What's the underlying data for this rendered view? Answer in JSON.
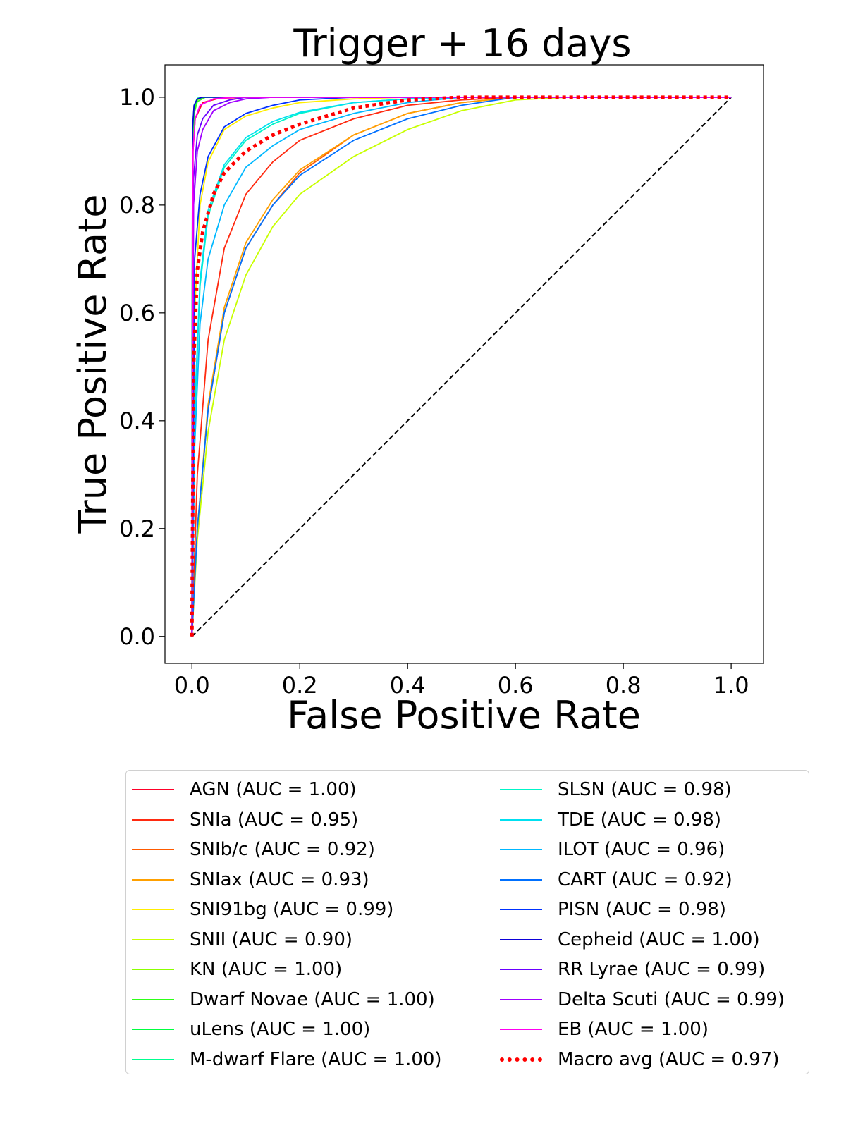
{
  "chart_data": {
    "type": "line",
    "title": "Trigger + 16 days",
    "xlabel": "False Positive Rate",
    "ylabel": "True Positive Rate",
    "xlim": [
      -0.05,
      1.06
    ],
    "ylim": [
      -0.05,
      1.06
    ],
    "xticks": [
      "0.0",
      "0.2",
      "0.4",
      "0.6",
      "0.8",
      "1.0"
    ],
    "yticks": [
      "0.0",
      "0.2",
      "0.4",
      "0.6",
      "0.8",
      "1.0"
    ],
    "grid": false,
    "legend_placement": "below",
    "chance_line": {
      "x": [
        0,
        1
      ],
      "y": [
        0,
        1
      ],
      "color": "#000000",
      "style": "dashed"
    },
    "series": [
      {
        "name": "AGN (AUC = 1.00)",
        "color": "#ff0029",
        "points": [
          [
            0,
            0
          ],
          [
            0.002,
            0.9
          ],
          [
            0.006,
            0.96
          ],
          [
            0.02,
            0.99
          ],
          [
            0.05,
            0.998
          ],
          [
            0.1,
            1
          ],
          [
            1,
            1
          ]
        ]
      },
      {
        "name": "SNIa (AUC = 0.95)",
        "color": "#ff2a10",
        "points": [
          [
            0,
            0
          ],
          [
            0.01,
            0.3
          ],
          [
            0.03,
            0.55
          ],
          [
            0.06,
            0.72
          ],
          [
            0.1,
            0.82
          ],
          [
            0.15,
            0.88
          ],
          [
            0.2,
            0.92
          ],
          [
            0.3,
            0.96
          ],
          [
            0.4,
            0.985
          ],
          [
            0.5,
            0.995
          ],
          [
            0.6,
            1
          ],
          [
            1,
            1
          ]
        ]
      },
      {
        "name": "SNIb/c (AUC = 0.92)",
        "color": "#ff5a00",
        "points": [
          [
            0,
            0
          ],
          [
            0.01,
            0.2
          ],
          [
            0.03,
            0.42
          ],
          [
            0.06,
            0.6
          ],
          [
            0.1,
            0.72
          ],
          [
            0.15,
            0.8
          ],
          [
            0.2,
            0.86
          ],
          [
            0.3,
            0.93
          ],
          [
            0.4,
            0.97
          ],
          [
            0.5,
            0.99
          ],
          [
            0.6,
            1
          ],
          [
            1,
            1
          ]
        ]
      },
      {
        "name": "SNIax (AUC = 0.93)",
        "color": "#ffa000",
        "points": [
          [
            0,
            0
          ],
          [
            0.01,
            0.2
          ],
          [
            0.03,
            0.43
          ],
          [
            0.06,
            0.61
          ],
          [
            0.1,
            0.73
          ],
          [
            0.15,
            0.81
          ],
          [
            0.2,
            0.865
          ],
          [
            0.3,
            0.93
          ],
          [
            0.4,
            0.97
          ],
          [
            0.5,
            0.99
          ],
          [
            0.6,
            1
          ],
          [
            1,
            1
          ]
        ]
      },
      {
        "name": "SNI91bg (AUC = 0.99)",
        "color": "#ffee00",
        "points": [
          [
            0,
            0
          ],
          [
            0.005,
            0.6
          ],
          [
            0.015,
            0.8
          ],
          [
            0.03,
            0.88
          ],
          [
            0.06,
            0.94
          ],
          [
            0.1,
            0.965
          ],
          [
            0.15,
            0.98
          ],
          [
            0.2,
            0.99
          ],
          [
            0.3,
            0.997
          ],
          [
            0.4,
            1
          ],
          [
            1,
            1
          ]
        ]
      },
      {
        "name": "SNII (AUC = 0.90)",
        "color": "#c8ff00",
        "points": [
          [
            0,
            0
          ],
          [
            0.01,
            0.18
          ],
          [
            0.03,
            0.38
          ],
          [
            0.06,
            0.55
          ],
          [
            0.1,
            0.67
          ],
          [
            0.15,
            0.76
          ],
          [
            0.2,
            0.82
          ],
          [
            0.3,
            0.89
          ],
          [
            0.4,
            0.94
          ],
          [
            0.5,
            0.975
          ],
          [
            0.6,
            0.995
          ],
          [
            0.7,
            1
          ],
          [
            1,
            1
          ]
        ]
      },
      {
        "name": "KN (AUC = 1.00)",
        "color": "#8cff00",
        "points": [
          [
            0,
            0
          ],
          [
            0.001,
            0.92
          ],
          [
            0.004,
            0.975
          ],
          [
            0.01,
            0.995
          ],
          [
            0.02,
            1
          ],
          [
            1,
            1
          ]
        ]
      },
      {
        "name": "Dwarf Novae (AUC = 1.00)",
        "color": "#2eff18",
        "points": [
          [
            0,
            0
          ],
          [
            0.001,
            0.9
          ],
          [
            0.004,
            0.97
          ],
          [
            0.01,
            0.992
          ],
          [
            0.025,
            1
          ],
          [
            1,
            1
          ]
        ]
      },
      {
        "name": "uLens (AUC = 1.00)",
        "color": "#00ff40",
        "points": [
          [
            0,
            0
          ],
          [
            0.001,
            0.93
          ],
          [
            0.004,
            0.98
          ],
          [
            0.01,
            0.996
          ],
          [
            0.02,
            1
          ],
          [
            1,
            1
          ]
        ]
      },
      {
        "name": "M-dwarf Flare (AUC = 1.00)",
        "color": "#00ff90",
        "points": [
          [
            0,
            0
          ],
          [
            0.001,
            0.94
          ],
          [
            0.004,
            0.985
          ],
          [
            0.01,
            0.998
          ],
          [
            0.02,
            1
          ],
          [
            1,
            1
          ]
        ]
      },
      {
        "name": "SLSN (AUC = 0.98)",
        "color": "#00f5c8",
        "points": [
          [
            0,
            0
          ],
          [
            0.005,
            0.4
          ],
          [
            0.015,
            0.65
          ],
          [
            0.03,
            0.78
          ],
          [
            0.06,
            0.87
          ],
          [
            0.1,
            0.92
          ],
          [
            0.15,
            0.95
          ],
          [
            0.2,
            0.97
          ],
          [
            0.3,
            0.99
          ],
          [
            0.4,
            0.997
          ],
          [
            0.5,
            1
          ],
          [
            1,
            1
          ]
        ]
      },
      {
        "name": "TDE (AUC = 0.98)",
        "color": "#00e0f0",
        "points": [
          [
            0,
            0
          ],
          [
            0.005,
            0.42
          ],
          [
            0.015,
            0.66
          ],
          [
            0.03,
            0.79
          ],
          [
            0.06,
            0.875
          ],
          [
            0.1,
            0.925
          ],
          [
            0.15,
            0.955
          ],
          [
            0.2,
            0.972
          ],
          [
            0.3,
            0.99
          ],
          [
            0.4,
            0.997
          ],
          [
            0.5,
            1
          ],
          [
            1,
            1
          ]
        ]
      },
      {
        "name": "ILOT (AUC = 0.96)",
        "color": "#00b8ff",
        "points": [
          [
            0,
            0
          ],
          [
            0.005,
            0.35
          ],
          [
            0.015,
            0.58
          ],
          [
            0.03,
            0.7
          ],
          [
            0.06,
            0.8
          ],
          [
            0.1,
            0.87
          ],
          [
            0.15,
            0.91
          ],
          [
            0.2,
            0.94
          ],
          [
            0.3,
            0.97
          ],
          [
            0.4,
            0.99
          ],
          [
            0.5,
            1
          ],
          [
            1,
            1
          ]
        ]
      },
      {
        "name": "CART (AUC = 0.92)",
        "color": "#0070ff",
        "points": [
          [
            0,
            0
          ],
          [
            0.01,
            0.2
          ],
          [
            0.03,
            0.42
          ],
          [
            0.06,
            0.6
          ],
          [
            0.1,
            0.72
          ],
          [
            0.15,
            0.8
          ],
          [
            0.2,
            0.855
          ],
          [
            0.3,
            0.92
          ],
          [
            0.4,
            0.96
          ],
          [
            0.5,
            0.985
          ],
          [
            0.6,
            1
          ],
          [
            1,
            1
          ]
        ]
      },
      {
        "name": "PISN (AUC = 0.98)",
        "color": "#0030ff",
        "points": [
          [
            0,
            0
          ],
          [
            0.005,
            0.7
          ],
          [
            0.015,
            0.82
          ],
          [
            0.03,
            0.89
          ],
          [
            0.06,
            0.945
          ],
          [
            0.1,
            0.97
          ],
          [
            0.15,
            0.985
          ],
          [
            0.2,
            0.995
          ],
          [
            0.3,
            1
          ],
          [
            1,
            1
          ]
        ]
      },
      {
        "name": "Cepheid (AUC = 1.00)",
        "color": "#0c00d8",
        "points": [
          [
            0,
            0
          ],
          [
            0.001,
            0.94
          ],
          [
            0.004,
            0.985
          ],
          [
            0.01,
            0.997
          ],
          [
            0.02,
            1
          ],
          [
            1,
            1
          ]
        ]
      },
      {
        "name": "RR Lyrae (AUC = 0.99)",
        "color": "#6a00ff",
        "points": [
          [
            0,
            0
          ],
          [
            0.003,
            0.85
          ],
          [
            0.01,
            0.93
          ],
          [
            0.02,
            0.96
          ],
          [
            0.04,
            0.985
          ],
          [
            0.07,
            0.995
          ],
          [
            0.1,
            1
          ],
          [
            1,
            1
          ]
        ]
      },
      {
        "name": "Delta Scuti (AUC = 0.99)",
        "color": "#a000ff",
        "points": [
          [
            0,
            0
          ],
          [
            0.003,
            0.8
          ],
          [
            0.01,
            0.9
          ],
          [
            0.02,
            0.94
          ],
          [
            0.04,
            0.975
          ],
          [
            0.07,
            0.99
          ],
          [
            0.1,
            0.997
          ],
          [
            0.15,
            1
          ],
          [
            1,
            1
          ]
        ]
      },
      {
        "name": "EB (AUC = 1.00)",
        "color": "#ff00f0",
        "points": [
          [
            0,
            0
          ],
          [
            0.002,
            0.9
          ],
          [
            0.006,
            0.96
          ],
          [
            0.015,
            0.985
          ],
          [
            0.04,
            0.997
          ],
          [
            0.08,
            1
          ],
          [
            1,
            1
          ]
        ]
      },
      {
        "name": "Macro avg (AUC = 0.97)",
        "color": "#ff0000",
        "style": "dotted",
        "points": [
          [
            0,
            0
          ],
          [
            0.003,
            0.5
          ],
          [
            0.01,
            0.68
          ],
          [
            0.02,
            0.75
          ],
          [
            0.04,
            0.82
          ],
          [
            0.06,
            0.86
          ],
          [
            0.1,
            0.9
          ],
          [
            0.15,
            0.93
          ],
          [
            0.2,
            0.95
          ],
          [
            0.3,
            0.98
          ],
          [
            0.4,
            0.995
          ],
          [
            0.5,
            1
          ],
          [
            1,
            1
          ]
        ]
      }
    ]
  }
}
